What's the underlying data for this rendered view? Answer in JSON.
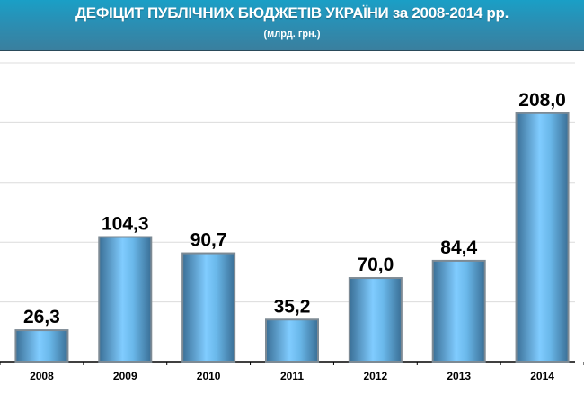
{
  "chart_data": {
    "type": "bar",
    "title": "ДЕФІЦИТ ПУБЛІЧНИХ БЮДЖЕТІВ УКРАЇНИ за 2008-2014 рр.",
    "subtitle": "(млрд. грн.)",
    "categories": [
      "2008",
      "2009",
      "2010",
      "2011",
      "2012",
      "2013",
      "2014"
    ],
    "values": [
      26.3,
      104.3,
      90.7,
      35.2,
      70.0,
      84.4,
      208.0
    ],
    "data_labels": [
      "26,3",
      "104,3",
      "90,7",
      "35,2",
      "70,0",
      "84,4",
      "208,0"
    ],
    "xlabel": "",
    "ylabel": "",
    "ylim": [
      0,
      250
    ],
    "grid": true,
    "bar_color": "#5aa8dc",
    "header_color": "#2a8fb4"
  }
}
